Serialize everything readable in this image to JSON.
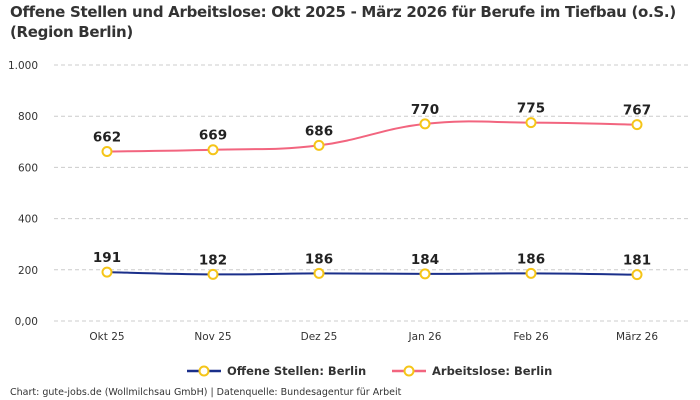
{
  "chart_data": {
    "type": "line",
    "title": "Offene Stellen und Arbeitslose: Okt 2025 - März 2026 für Berufe im Tiefbau (o.S.) (Region Berlin)",
    "categories": [
      "Okt 25",
      "Nov 25",
      "Dez 25",
      "Jan 26",
      "Feb 26",
      "März 26"
    ],
    "ylim": [
      0,
      1000
    ],
    "yticks": [
      0,
      200,
      400,
      600,
      800,
      1000
    ],
    "ytick_labels": [
      "0,00",
      "200",
      "400",
      "600",
      "800",
      "1.000"
    ],
    "grid": true,
    "legend_position": "bottom",
    "series": [
      {
        "name": "Offene Stellen: Berlin",
        "values": [
          191,
          182,
          186,
          184,
          186,
          181
        ],
        "color": "#1a2f8a"
      },
      {
        "name": "Arbeitslose: Berlin",
        "values": [
          662,
          669,
          686,
          770,
          775,
          767
        ],
        "color": "#f2657f"
      }
    ],
    "marker_color": "#f5c518"
  },
  "footer": "Chart: gute-jobs.de (Wollmilchsau GmbH) | Datenquelle: Bundesagentur für Arbeit"
}
